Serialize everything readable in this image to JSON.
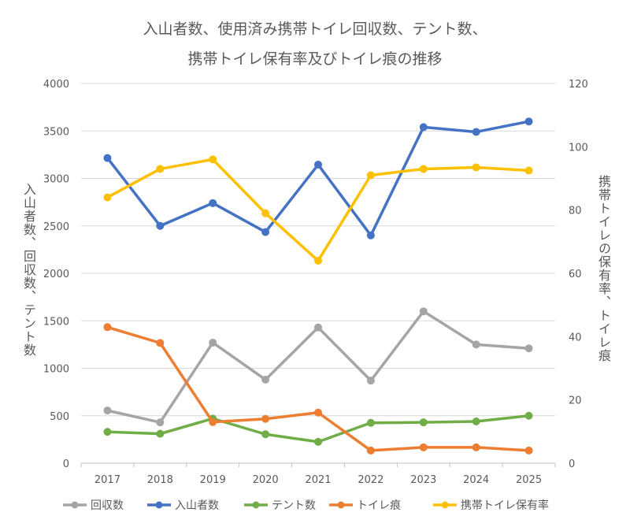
{
  "chart_data": {
    "type": "line",
    "title_lines": [
      "入山者数、使用済み携帯トイレ回収数、テント数、",
      "携帯トイレ保有率及びトイレ痕の推移"
    ],
    "x": [
      "2017",
      "2018",
      "2019",
      "2020",
      "2021",
      "2022",
      "2023",
      "2024",
      "2025"
    ],
    "ylabel_left": "入山者数、回収数、テント数",
    "ylabel_right": "携帯トイレの保有率、トイレ痕",
    "ylim_left": [
      0,
      4000
    ],
    "yticks_left": [
      "0",
      "500",
      "1000",
      "1500",
      "2000",
      "2500",
      "3000",
      "3500",
      "4000"
    ],
    "ylim_right": [
      0,
      120
    ],
    "yticks_right": [
      "0",
      "20",
      "40",
      "60",
      "80",
      "100",
      "120"
    ],
    "grid": true,
    "legend_position": "bottom",
    "series": [
      {
        "name": "回収数",
        "axis": "left",
        "color": "#A5A5A5",
        "values": [
          555,
          430,
          1270,
          880,
          1430,
          870,
          1600,
          1250,
          1210
        ]
      },
      {
        "name": "入山者数",
        "axis": "left",
        "color": "#4472C4",
        "values": [
          3215,
          2500,
          2740,
          2435,
          3145,
          2400,
          3540,
          3490,
          3600
        ]
      },
      {
        "name": "テント数",
        "axis": "left",
        "color": "#70AD47",
        "values": [
          330,
          310,
          470,
          305,
          225,
          425,
          430,
          440,
          500
        ]
      },
      {
        "name": "トイレ痕",
        "axis": "right",
        "color": "#ED7D31",
        "values": [
          43,
          38,
          13,
          14,
          16,
          4,
          5,
          5,
          4
        ]
      },
      {
        "name": "携帯トイレ保有率",
        "axis": "right",
        "color": "#FFC000",
        "values": [
          84,
          93,
          96,
          79,
          64,
          91,
          93,
          93.5,
          92.5
        ]
      }
    ]
  }
}
